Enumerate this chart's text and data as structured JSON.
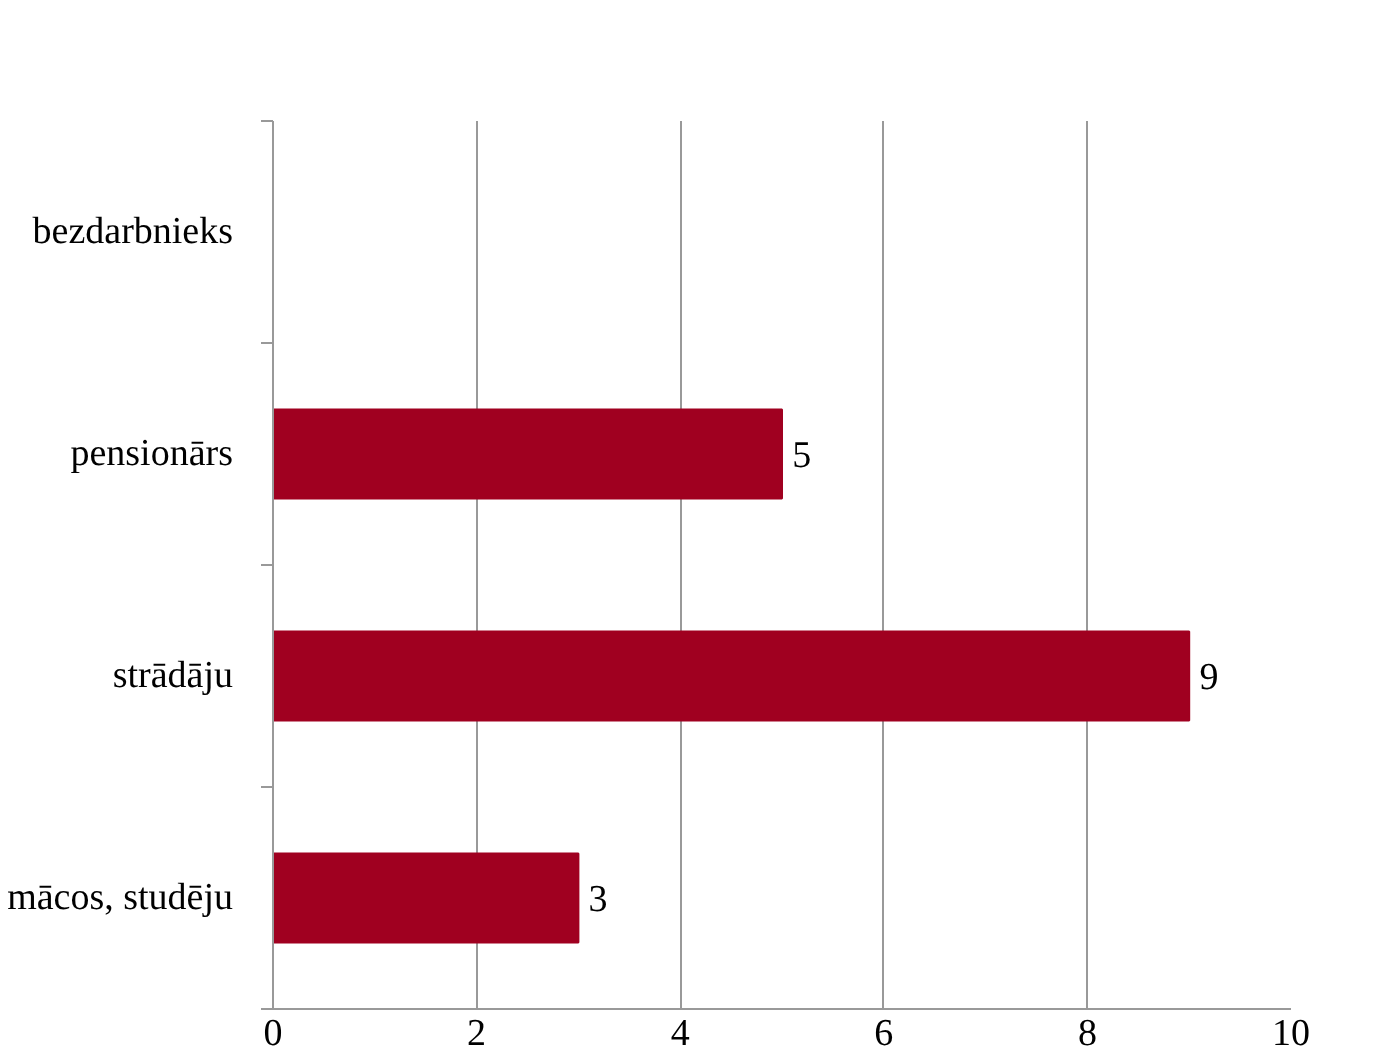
{
  "chart_data": {
    "type": "bar",
    "orientation": "horizontal",
    "categories": [
      "bezdarbnieks",
      "pensionārs",
      "strādāju",
      "mācos, studēju"
    ],
    "values": [
      0,
      5,
      9,
      3
    ],
    "value_labels": [
      null,
      "5",
      "9",
      "3"
    ],
    "color": "#a00020",
    "xlim": [
      0,
      10
    ],
    "xticks": [
      0,
      2,
      4,
      6,
      8,
      10
    ],
    "grid": "x"
  }
}
